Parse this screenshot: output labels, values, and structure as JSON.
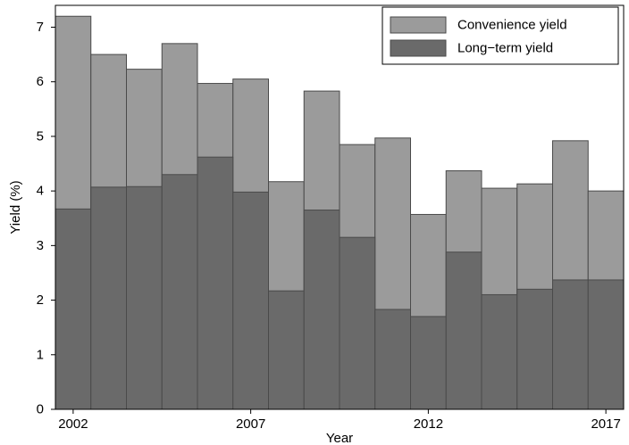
{
  "chart_data": {
    "type": "bar",
    "xlabel": "Year",
    "ylabel": "Yield (%)",
    "xlim": [
      2001.5,
      2017.5
    ],
    "ylim": [
      0,
      7.4
    ],
    "grid": false,
    "legend_position": "top-right",
    "x": [
      2002,
      2003,
      2004,
      2005,
      2006,
      2007,
      2008,
      2009,
      2010,
      2011,
      2012,
      2013,
      2014,
      2015,
      2016,
      2017
    ],
    "x_ticks": [
      2002,
      2007,
      2012,
      2017
    ],
    "y_ticks": [
      0,
      1,
      2,
      3,
      4,
      5,
      6,
      7
    ],
    "series": [
      {
        "name": "Convenience yield",
        "color": "#9b9b9b",
        "values": [
          7.2,
          6.5,
          6.23,
          6.7,
          5.97,
          6.05,
          4.17,
          5.83,
          4.85,
          4.97,
          3.57,
          4.37,
          4.05,
          4.13,
          4.92,
          4.0
        ]
      },
      {
        "name": "Long−term yield",
        "color": "#6a6a6a",
        "values": [
          3.67,
          4.07,
          4.08,
          4.3,
          4.62,
          3.98,
          2.17,
          3.65,
          3.15,
          1.83,
          1.7,
          2.88,
          2.1,
          2.2,
          2.37,
          2.37
        ]
      }
    ]
  }
}
